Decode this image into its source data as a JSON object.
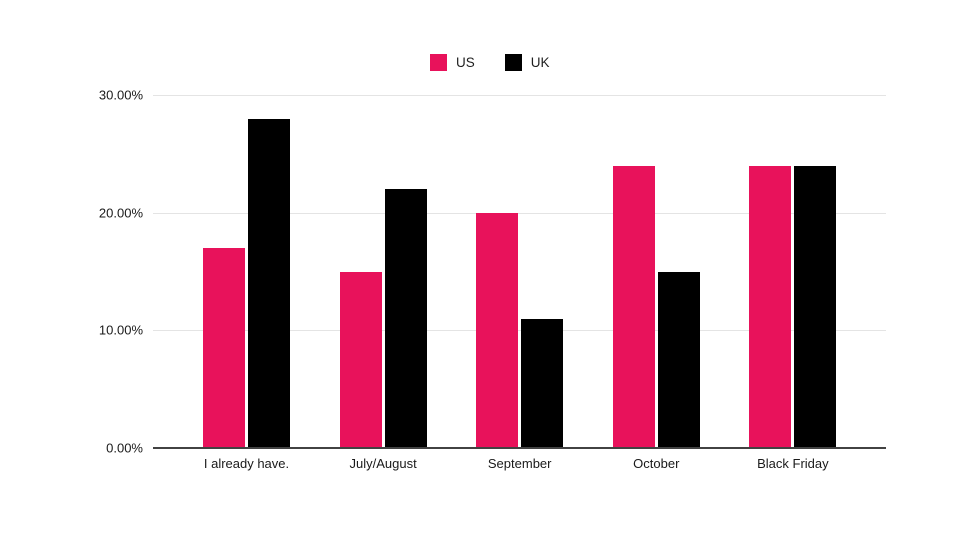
{
  "chart_data": {
    "type": "bar",
    "title": "",
    "xlabel": "",
    "ylabel": "",
    "categories": [
      "I already have.",
      "July/August",
      "September",
      "October",
      "Black Friday"
    ],
    "series": [
      {
        "name": "US",
        "color": "#E8125B",
        "values": [
          17,
          15,
          20,
          24,
          24
        ]
      },
      {
        "name": "UK",
        "color": "#000000",
        "values": [
          28,
          22,
          11,
          15,
          24
        ]
      }
    ],
    "ylim": [
      0,
      30
    ],
    "y_ticks": [
      {
        "value": 0,
        "label": "0.00%"
      },
      {
        "value": 10,
        "label": "10.00%"
      },
      {
        "value": 20,
        "label": "20.00%"
      },
      {
        "value": 30,
        "label": "30.00%"
      }
    ],
    "grid": true,
    "legend_position": "top",
    "gridline_color": "#E4E4E4",
    "axis_line_color": "#424242",
    "background_color": "#FFFFFF"
  }
}
